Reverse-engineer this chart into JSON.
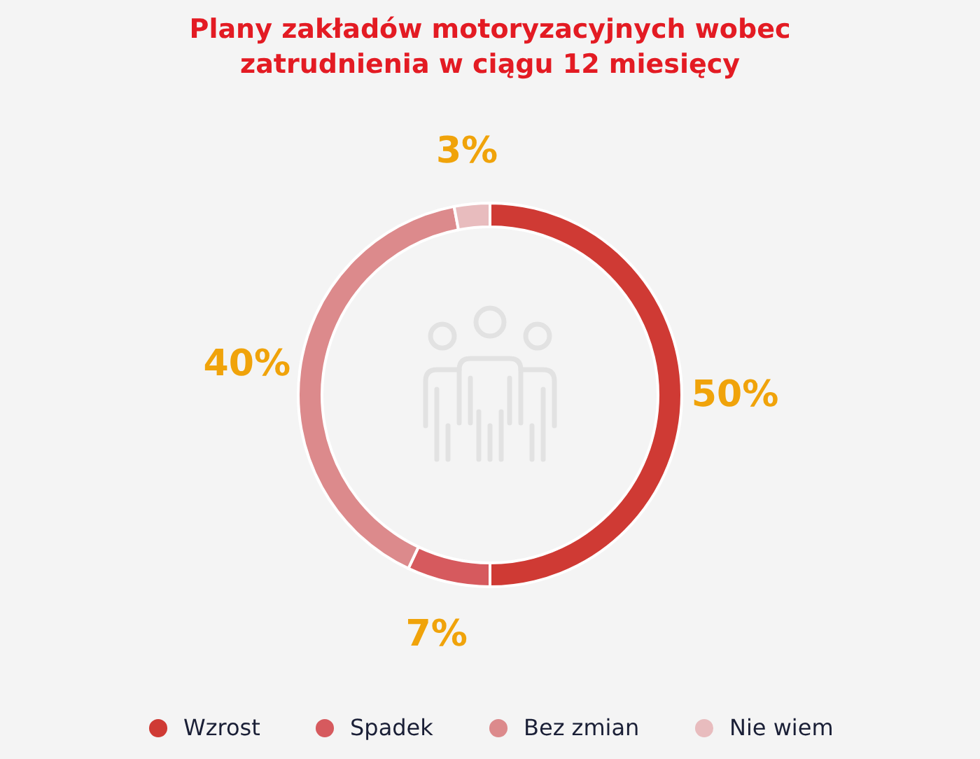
{
  "chart_data": {
    "type": "donut",
    "title": "Plany zakładów motoryzacyjnych wobec\nzatrudnienia w ciągu 12 miesięcy",
    "categories": [
      "Wzrost",
      "Spadek",
      "Bez zmian",
      "Nie wiem"
    ],
    "values": [
      50,
      7,
      40,
      3
    ],
    "colors": [
      "#cf3a34",
      "#d65a5e",
      "#dc8a8c",
      "#e8bcbe"
    ],
    "value_labels": [
      "50%",
      "7%",
      "40%",
      "3%"
    ],
    "legend": "bottom"
  }
}
